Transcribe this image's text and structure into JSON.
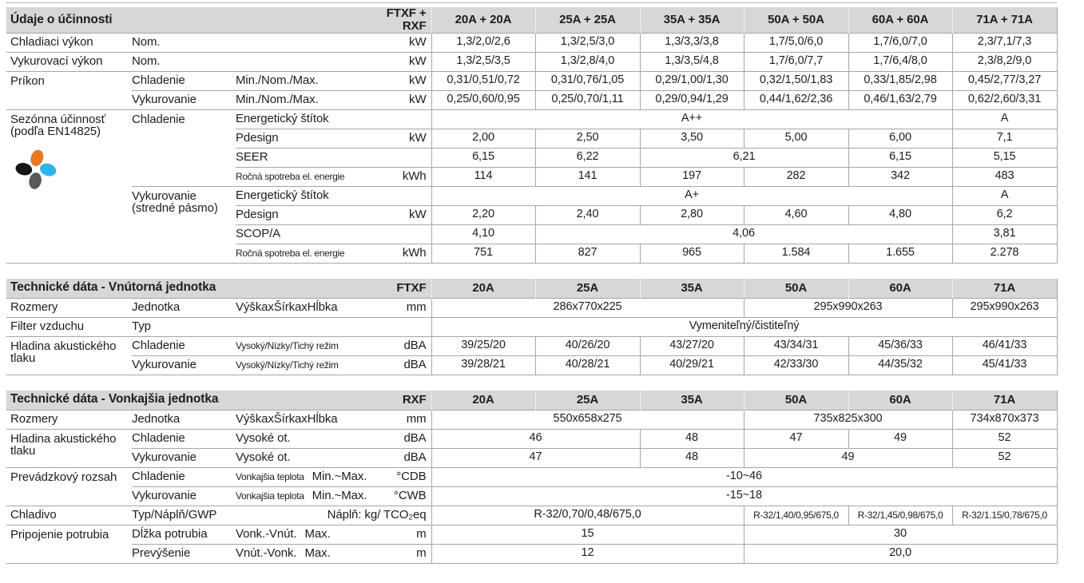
{
  "colors": {
    "section_header_bg": "#d7d7d7",
    "grid_line": "#a6a6a6",
    "text": "#1d1d1d",
    "logo": {
      "orange": "#e87722",
      "blue": "#2fb4e9",
      "black": "#151515",
      "gray": "#58595b"
    }
  },
  "icons": {
    "seasonal_efficiency": "four-petal-flower-icon"
  },
  "tables": [
    {
      "id": "efficiency",
      "title": "Údaje o účinnosti",
      "model": "FTXF + RXF",
      "columns": [
        "20A + 20A",
        "25A + 25A",
        "35A + 35A",
        "50A + 50A",
        "60A + 60A",
        "71A + 71A"
      ],
      "rows": [
        {
          "label": "Chladiaci výkon",
          "sub": "Nom.",
          "attr": "",
          "unit": "kW",
          "cells": [
            [
              "1,3/2,0/2,6",
              1
            ],
            [
              "1,3/2,5/3,0",
              1
            ],
            [
              "1,3/3,3/3,8",
              1
            ],
            [
              "1,7/5,0/6,0",
              1
            ],
            [
              "1,7/6,0/7,0",
              1
            ],
            [
              "2,3/7,1/7,3",
              1
            ]
          ]
        },
        {
          "label": "Vykurovací výkon",
          "sub": "Nom.",
          "attr": "",
          "unit": "kW",
          "cells": [
            [
              "1,3/2,5/3,5",
              1
            ],
            [
              "1,3/2,8/4,0",
              1
            ],
            [
              "1,3/3,5/4,8",
              1
            ],
            [
              "1,7/6,0/7,7",
              1
            ],
            [
              "1,7/6,4/8,0",
              1
            ],
            [
              "2,3/8,2/9,0",
              1
            ]
          ]
        },
        {
          "label": "Príkon",
          "label_rowspan": 2,
          "sub": "Chladenie",
          "attr": "Min./Nom./Max.",
          "unit": "kW",
          "cells": [
            [
              "0,31/0,51/0,72",
              1
            ],
            [
              "0,31/0,76/1,05",
              1
            ],
            [
              "0,29/1,00/1,30",
              1
            ],
            [
              "0,32/1,50/1,83",
              1
            ],
            [
              "0,33/1,85/2,98",
              1
            ],
            [
              "0,45/2,77/3,27",
              1
            ]
          ]
        },
        {
          "sub": "Vykurovanie",
          "attr": "Min./Nom./Max.",
          "unit": "kW",
          "cells": [
            [
              "0,25/0,60/0,95",
              1
            ],
            [
              "0,25/0,70/1,11",
              1
            ],
            [
              "0,29/0,94/1,29",
              1
            ],
            [
              "0,44/1,62/2,36",
              1
            ],
            [
              "0,46/1,63/2,79",
              1
            ],
            [
              "0,62/2,60/3,31",
              1
            ]
          ]
        },
        {
          "label": "Sezónna účinnosť",
          "label2": "(podľa EN14825)",
          "label_rowspan": 8,
          "logo": true,
          "sub": "Chladenie",
          "sub_rowspan": 4,
          "attr": "Energetický štítok",
          "unit": "",
          "cells": [
            [
              "A++",
              5
            ],
            [
              "A",
              1
            ]
          ]
        },
        {
          "attr": "Pdesign",
          "unit": "kW",
          "cells": [
            [
              "2,00",
              1
            ],
            [
              "2,50",
              1
            ],
            [
              "3,50",
              1
            ],
            [
              "5,00",
              1
            ],
            [
              "6,00",
              1
            ],
            [
              "7,1",
              1
            ]
          ]
        },
        {
          "attr": "SEER",
          "unit": "",
          "cells": [
            [
              "6,15",
              1
            ],
            [
              "6,22",
              1
            ],
            [
              "6,21",
              2
            ],
            [
              "6,15",
              1
            ],
            [
              "5,15",
              1
            ]
          ]
        },
        {
          "attr": "Ročná spotreba el. energie",
          "attr_small": true,
          "unit": "kWh",
          "cells": [
            [
              "114",
              1
            ],
            [
              "141",
              1
            ],
            [
              "197",
              1
            ],
            [
              "282",
              1
            ],
            [
              "342",
              1
            ],
            [
              "483",
              1
            ]
          ]
        },
        {
          "sub": "Vykurovanie",
          "sub2": "(stredné pásmo)",
          "sub_rowspan": 4,
          "attr": "Energetický štítok",
          "unit": "",
          "cells": [
            [
              "A+",
              5
            ],
            [
              "A",
              1
            ]
          ]
        },
        {
          "attr": "Pdesign",
          "unit": "kW",
          "cells": [
            [
              "2,20",
              1
            ],
            [
              "2,40",
              1
            ],
            [
              "2,80",
              1
            ],
            [
              "4,60",
              1
            ],
            [
              "4,80",
              1
            ],
            [
              "6,2",
              1
            ]
          ]
        },
        {
          "attr": "SCOP/A",
          "unit": "",
          "cells": [
            [
              "4,10",
              1
            ],
            [
              "4,06",
              4
            ],
            [
              "3,81",
              1
            ]
          ]
        },
        {
          "attr": "Ročná spotreba el. energie",
          "attr_small": true,
          "unit": "kWh",
          "cells": [
            [
              "751",
              1
            ],
            [
              "827",
              1
            ],
            [
              "965",
              1
            ],
            [
              "1.584",
              1
            ],
            [
              "1.655",
              1
            ],
            [
              "2.278",
              1
            ]
          ]
        }
      ]
    },
    {
      "id": "indoor",
      "title": "Technické dáta - Vnútorná jednotka",
      "model": "FTXF",
      "columns": [
        "20A",
        "25A",
        "35A",
        "50A",
        "60A",
        "71A"
      ],
      "rows": [
        {
          "label": "Rozmery",
          "sub": "Jednotka",
          "attr": "VýškaxŠírkaxHĺbka",
          "unit": "mm",
          "cells": [
            [
              "286x770x225",
              3
            ],
            [
              "295x990x263",
              2
            ],
            [
              "295x990x263",
              1
            ]
          ]
        },
        {
          "label": "Filter vzduchu",
          "sub": "Typ",
          "attr": "",
          "unit": "",
          "cells": [
            [
              "Vymeniteľný/čistiteľný",
              6
            ]
          ]
        },
        {
          "label": "Hladina akustického tlaku",
          "label_rowspan": 2,
          "sub": "Chladenie",
          "attr": "Vysoký/Nízky/Tichý režim",
          "attr_small": true,
          "unit": "dBA",
          "cells": [
            [
              "39/25/20",
              1
            ],
            [
              "40/26/20",
              1
            ],
            [
              "43/27/20",
              1
            ],
            [
              "43/34/31",
              1
            ],
            [
              "45/36/33",
              1
            ],
            [
              "46/41/33",
              1
            ]
          ]
        },
        {
          "sub": "Vykurovanie",
          "attr": "Vysoký/Nízky/Tichý režim",
          "attr_small": true,
          "unit": "dBA",
          "cells": [
            [
              "39/28/21",
              1
            ],
            [
              "40/28/21",
              1
            ],
            [
              "40/29/21",
              1
            ],
            [
              "42/33/30",
              1
            ],
            [
              "44/35/32",
              1
            ],
            [
              "45/41/33",
              1
            ]
          ]
        }
      ]
    },
    {
      "id": "outdoor",
      "title": "Technické dáta - Vonkajšia jednotka",
      "model": "RXF",
      "columns": [
        "20A",
        "25A",
        "35A",
        "50A",
        "60A",
        "71A"
      ],
      "rows": [
        {
          "label": "Rozmery",
          "sub": "Jednotka",
          "attr": "VýškaxŠírkaxHĺbka",
          "unit": "mm",
          "cells": [
            [
              "550x658x275",
              3
            ],
            [
              "735x825x300",
              2
            ],
            [
              "734x870x373",
              1
            ]
          ]
        },
        {
          "label": "Hladina akustického tlaku",
          "label_rowspan": 2,
          "sub": "Chladenie",
          "attr": "Vysoké ot.",
          "unit": "dBA",
          "cells": [
            [
              "46",
              2
            ],
            [
              "48",
              1
            ],
            [
              "47",
              1
            ],
            [
              "49",
              1
            ],
            [
              "52",
              1
            ]
          ]
        },
        {
          "sub": "Vykurovanie",
          "attr": "Vysoké ot.",
          "unit": "dBA",
          "cells": [
            [
              "47",
              2
            ],
            [
              "48",
              1
            ],
            [
              "49",
              2
            ],
            [
              "52",
              1
            ]
          ]
        },
        {
          "label": "Prevádzkový rozsah",
          "label_rowspan": 2,
          "sub": "Chladenie",
          "attr_prefix": "Vonkajšia teplota",
          "attr_prefix_small": true,
          "attr": "Min.~Max.",
          "unit": "°CDB",
          "cells": [
            [
              "-10~46",
              6
            ]
          ]
        },
        {
          "sub": "Vykurovanie",
          "attr_prefix": "Vonkajšia teplota",
          "attr_prefix_small": true,
          "attr": "Min.~Max.",
          "unit": "°CWB",
          "cells": [
            [
              "-15~18",
              6
            ]
          ]
        },
        {
          "label": "Chladivo",
          "sub": "Typ/Náplň/GWP",
          "attr": "Náplň: kg/ TCO₂eq",
          "attr_colspan": 2,
          "attr_align": "right",
          "cells": [
            [
              "R-32/0,70/0,48/675,0",
              3
            ],
            [
              "R-32/1,40/0,95/675,0",
              1,
              "small"
            ],
            [
              "R-32/1,45/0,98/675,0",
              1,
              "small"
            ],
            [
              "R-32/1.15/0,78/675,0",
              1,
              "small"
            ]
          ]
        },
        {
          "label": "Pripojenie potrubia",
          "label_rowspan": 2,
          "sub": "Dĺžka potrubia",
          "attr_prefix": "Vonk.-Vnút.",
          "attr": "Max.",
          "unit": "m",
          "cells": [
            [
              "15",
              3
            ],
            [
              "30",
              3
            ]
          ]
        },
        {
          "sub": "Prevýšenie",
          "attr_prefix": "Vnút.-Vonk.",
          "attr": "Max.",
          "unit": "m",
          "cells": [
            [
              "12",
              3
            ],
            [
              "20,0",
              3
            ]
          ]
        }
      ]
    }
  ]
}
